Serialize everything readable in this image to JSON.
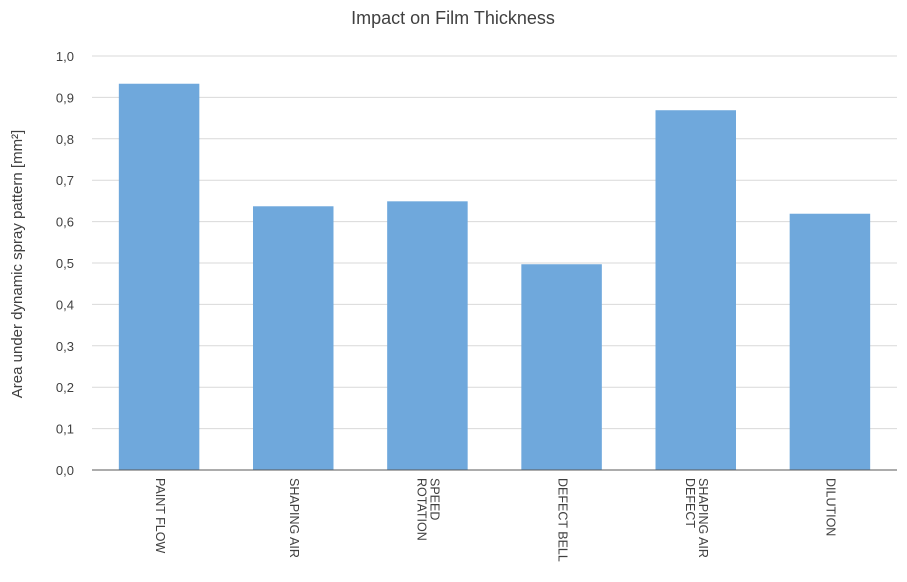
{
  "chart_data": {
    "type": "bar",
    "title": "Impact on Film Thickness",
    "xlabel": "",
    "ylabel": "Area under dynamic spray pattern [mm²]",
    "categories": [
      [
        "PAINT FLOW"
      ],
      [
        "SHAPING AIR"
      ],
      [
        "ROTATION",
        "SPEED"
      ],
      [
        "DEFECT BELL"
      ],
      [
        "DEFECT",
        "SHAPING AIR"
      ],
      [
        "DILUTION"
      ]
    ],
    "values": [
      0.933,
      0.637,
      0.649,
      0.497,
      0.869,
      0.619
    ],
    "ylim": [
      0,
      1.0
    ],
    "yticks": [
      "0,0",
      "0,1",
      "0,2",
      "0,3",
      "0,4",
      "0,5",
      "0,6",
      "0,7",
      "0,8",
      "0,9",
      "1,0"
    ],
    "grid": true,
    "legend": "none",
    "colors": {
      "bar": "#6fa8dc",
      "grid": "#d9d9d9",
      "axis": "#595959",
      "text": "#404040"
    }
  }
}
